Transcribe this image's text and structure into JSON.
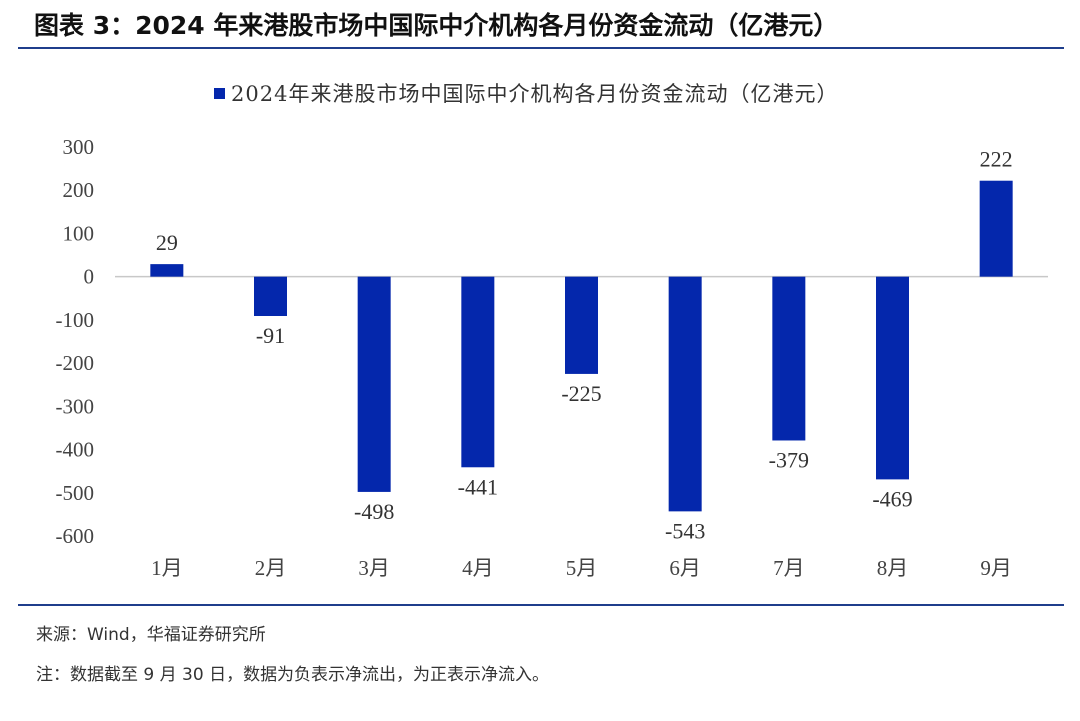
{
  "figure": {
    "title": "图表 3：2024 年来港股市场中国际中介机构各月份资金流动（亿港元）",
    "source": "来源：Wind，华福证券研究所",
    "note": "注：数据截至 9 月 30 日，数据为负表示净流出，为正表示净流入。"
  },
  "chart_data": {
    "type": "bar",
    "title": "",
    "xlabel": "",
    "ylabel": "",
    "categories": [
      "1月",
      "2月",
      "3月",
      "4月",
      "5月",
      "6月",
      "7月",
      "8月",
      "9月"
    ],
    "series": [
      {
        "name": "2024年来港股市场中国际中介机构各月份资金流动（亿港元）",
        "values": [
          29,
          -91,
          -498,
          -441,
          -225,
          -543,
          -379,
          -469,
          222
        ],
        "color": "#0427ac"
      }
    ],
    "ylim": [
      -600,
      300
    ],
    "yticks": [
      300,
      200,
      100,
      0,
      -100,
      -200,
      -300,
      -400,
      -500,
      -600
    ],
    "grid": false,
    "legend_position": "top-center",
    "data_labels": true
  }
}
